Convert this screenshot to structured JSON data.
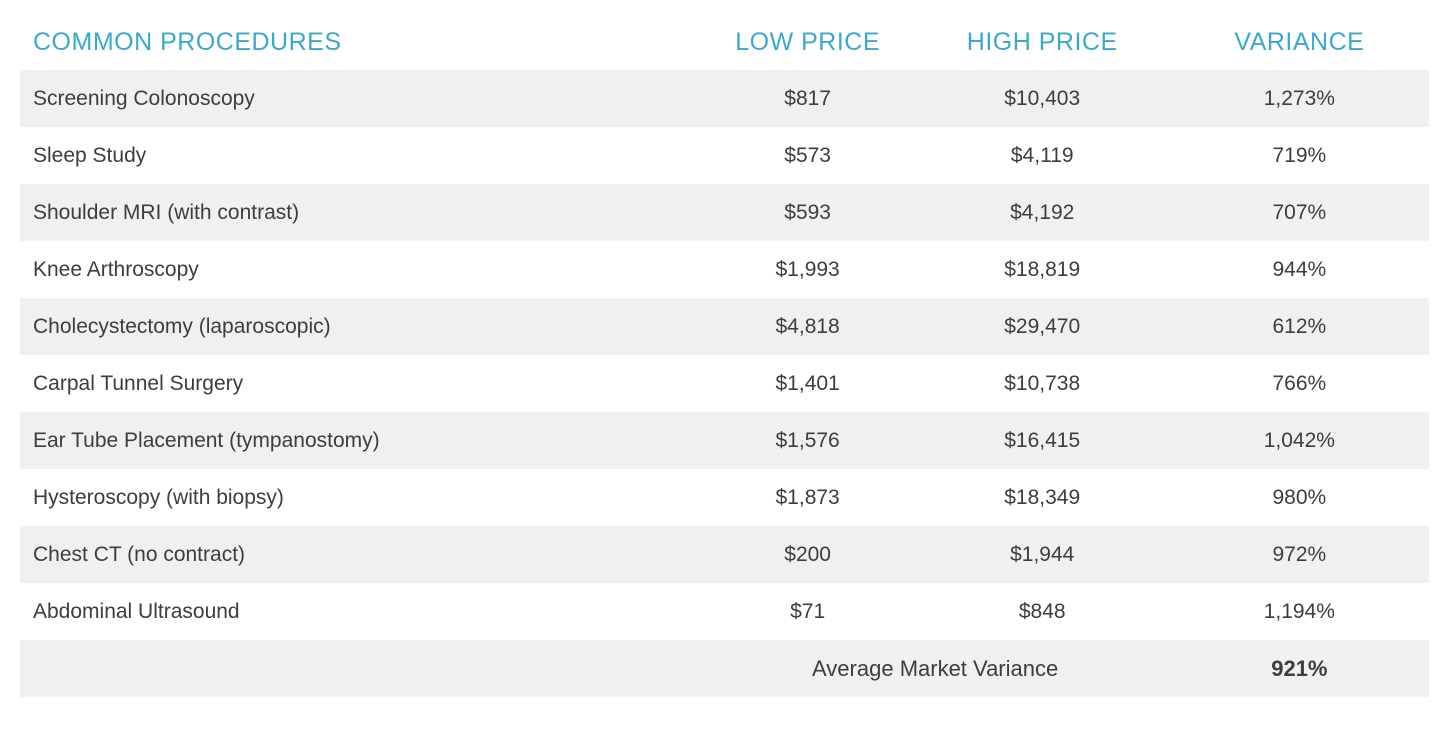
{
  "colors": {
    "accent": "#3BA9CC",
    "stripe": "#F0F0F0",
    "body_text": "#3D3D3D"
  },
  "chart_data": {
    "type": "table",
    "title": "",
    "columns": [
      "COMMON PROCEDURES",
      "LOW PRICE",
      "HIGH PRICE",
      "VARIANCE"
    ],
    "rows": [
      {
        "procedure": "Screening Colonoscopy",
        "low_price": "$817",
        "high_price": "$10,403",
        "variance": "1,273%"
      },
      {
        "procedure": "Sleep Study",
        "low_price": "$573",
        "high_price": "$4,119",
        "variance": "719%"
      },
      {
        "procedure": "Shoulder MRI (with contrast)",
        "low_price": "$593",
        "high_price": "$4,192",
        "variance": "707%"
      },
      {
        "procedure": "Knee Arthroscopy",
        "low_price": "$1,993",
        "high_price": "$18,819",
        "variance": "944%"
      },
      {
        "procedure": "Cholecystectomy (laparoscopic)",
        "low_price": "$4,818",
        "high_price": "$29,470",
        "variance": "612%"
      },
      {
        "procedure": "Carpal Tunnel Surgery",
        "low_price": "$1,401",
        "high_price": "$10,738",
        "variance": "766%"
      },
      {
        "procedure": "Ear Tube Placement (tympanostomy)",
        "low_price": "$1,576",
        "high_price": "$16,415",
        "variance": "1,042%"
      },
      {
        "procedure": "Hysteroscopy (with biopsy)",
        "low_price": "$1,873",
        "high_price": "$18,349",
        "variance": "980%"
      },
      {
        "procedure": "Chest CT (no contract)",
        "low_price": "$200",
        "high_price": "$1,944",
        "variance": "972%"
      },
      {
        "procedure": "Abdominal Ultrasound",
        "low_price": "$71",
        "high_price": "$848",
        "variance": "1,194%"
      }
    ],
    "footer": {
      "label": "Average Market Variance",
      "value": "921%"
    }
  }
}
